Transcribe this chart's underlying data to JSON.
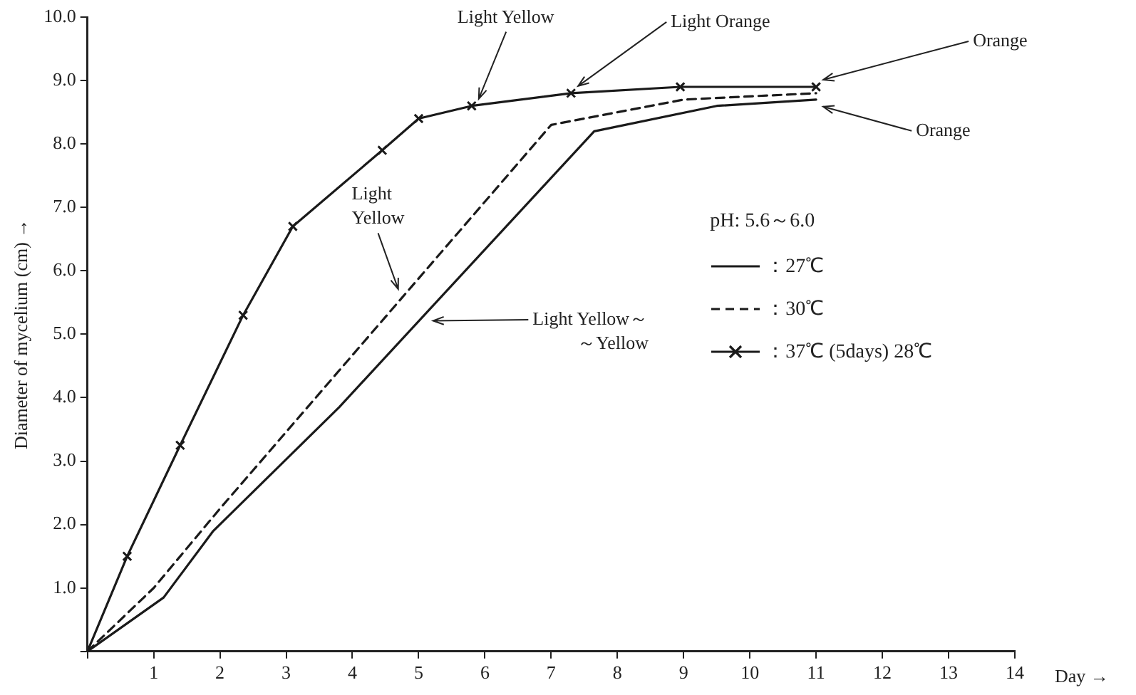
{
  "chart_data": {
    "type": "line",
    "xlabel": "Day →",
    "ylabel": "Diameter of mycelium (cm) →",
    "legend_title": "pH: 5.6～6.0",
    "legend": "right",
    "grid": false,
    "line_style": "solid",
    "marker": "none",
    "xlim": [
      0,
      14
    ],
    "xticks": [
      {
        "value": 0,
        "label": null
      },
      1,
      2,
      3,
      4,
      5,
      6,
      7,
      8,
      9,
      10,
      11,
      12,
      13,
      14
    ],
    "ylim": [
      0,
      10
    ],
    "yticks": [
      {
        "value": 0,
        "label": null
      },
      {
        "value": 1,
        "label": "1.0"
      },
      {
        "value": 2,
        "label": "2.0"
      },
      {
        "value": 3,
        "label": "3.0"
      },
      {
        "value": 4,
        "label": "4.0"
      },
      {
        "value": 5,
        "label": "5.0"
      },
      {
        "value": 6,
        "label": "6.0"
      },
      {
        "value": 7,
        "label": "7.0"
      },
      {
        "value": 8,
        "label": "8.0"
      },
      {
        "value": 9,
        "label": "9.0"
      },
      {
        "value": 10,
        "label": "10.0"
      }
    ],
    "series": [
      {
        "name": "：27℃",
        "color": "#1a1a1a",
        "x": [
          0,
          1.15,
          1.9,
          3.8,
          7.65,
          9.5,
          11
        ],
        "values": [
          0,
          0.85,
          1.9,
          3.85,
          8.2,
          8.6,
          8.7
        ]
      },
      {
        "name": "：30℃",
        "color": "#1a1a1a",
        "line_style": "dashed",
        "x": [
          0,
          1,
          2,
          7,
          9,
          11
        ],
        "values": [
          0,
          1.0,
          2.25,
          8.3,
          8.7,
          8.8
        ]
      },
      {
        "name": "：37℃ (5days) 28℃",
        "color": "#1a1a1a",
        "marker": "cross",
        "x": [
          0,
          0.6,
          1.4,
          2.35,
          3.1,
          4.45,
          5.0,
          5.8,
          7.3,
          8.95,
          11
        ],
        "values": [
          0,
          1.5,
          3.25,
          5.3,
          6.7,
          7.9,
          8.4,
          8.6,
          8.8,
          8.9,
          8.9
        ]
      }
    ],
    "annotations": [
      {
        "text": "Light Yellow",
        "x": 5.8,
        "y": 8.6
      },
      {
        "text": "Light Orange",
        "x": 7.3,
        "y": 8.8
      },
      {
        "text": "Orange",
        "x": 11,
        "y": 8.9
      },
      {
        "text": "Orange",
        "x": 11,
        "y": 8.7
      },
      "Light Yellow",
      "Light Yellow～～Yellow"
    ]
  }
}
